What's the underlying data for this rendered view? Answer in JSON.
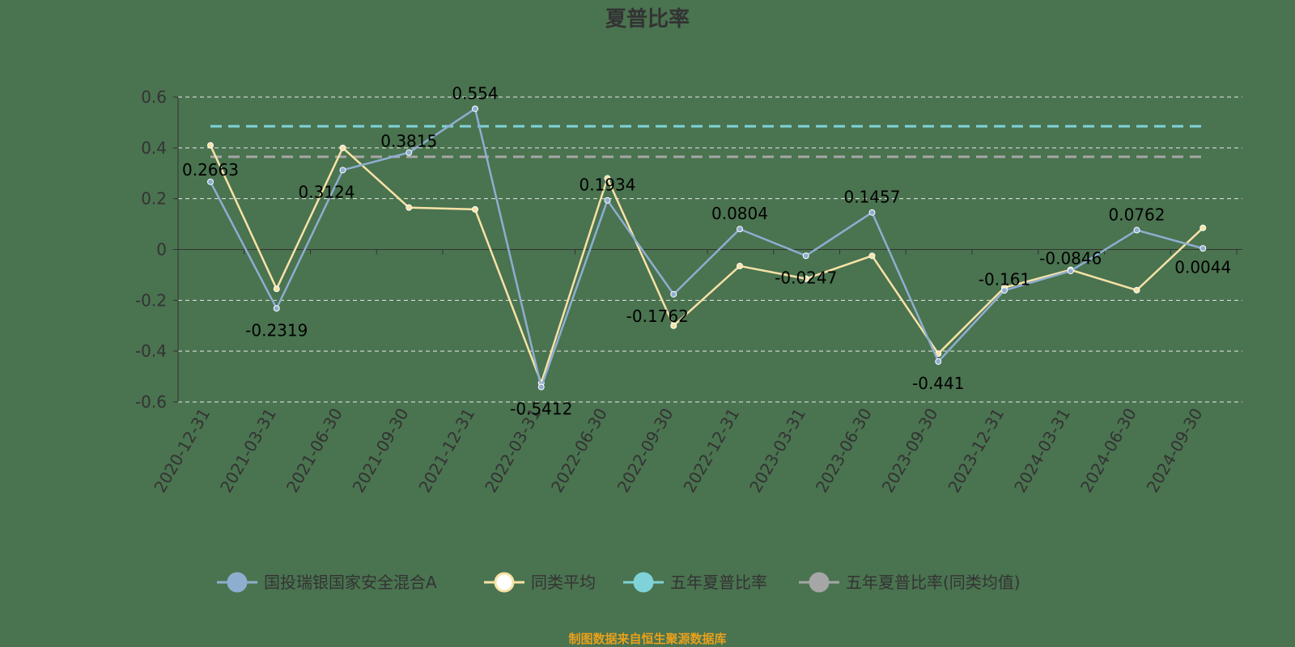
{
  "chart_data": {
    "type": "line",
    "title": "夏普比率",
    "source": "制图数据来自恒生聚源数据库",
    "categories": [
      "2020-12-31",
      "2021-03-31",
      "2021-06-30",
      "2021-09-30",
      "2021-12-31",
      "2022-03-31",
      "2022-06-30",
      "2022-09-30",
      "2022-12-31",
      "2023-03-31",
      "2023-06-30",
      "2023-09-30",
      "2023-12-31",
      "2024-03-31",
      "2024-06-30",
      "2024-09-30"
    ],
    "ylim": [
      -0.6,
      0.6
    ],
    "yticks": [
      0.6,
      0.4,
      0.2,
      0,
      -0.2,
      -0.4,
      -0.6
    ],
    "ytick_labels": [
      "0.6",
      "0.4",
      "0.2",
      "0",
      "-0.2",
      "-0.4",
      "-0.6"
    ],
    "grid": true,
    "legend_position": "bottom",
    "series": [
      {
        "name": "国投瑞银国家安全混合A",
        "color": "#8eaed0",
        "values": [
          0.2663,
          -0.2319,
          0.3124,
          0.3815,
          0.554,
          -0.5412,
          0.1934,
          -0.1762,
          0.0804,
          -0.0247,
          0.1457,
          -0.441,
          -0.161,
          -0.0846,
          0.0762,
          0.0044
        ],
        "labels": [
          "0.2663",
          "-0.2319",
          "0.3124",
          "0.3815",
          "0.554",
          "-0.5412",
          "0.1934",
          "-0.1762",
          "0.0804",
          "-0.0247",
          "0.1457",
          "-0.441",
          "-0.161",
          "-0.0846",
          "0.0762",
          "0.0044"
        ]
      },
      {
        "name": "同类平均",
        "color": "#f7e2a6",
        "values": [
          0.41,
          -0.155,
          0.4,
          0.165,
          0.158,
          -0.525,
          0.28,
          -0.3,
          -0.065,
          -0.115,
          -0.025,
          -0.41,
          -0.15,
          -0.08,
          -0.16,
          0.085
        ]
      },
      {
        "name": "五年夏普比率",
        "color": "#7fd3d8",
        "reference": 0.485
      },
      {
        "name": "五年夏普比率(同类均值)",
        "color": "#a6a6a6",
        "reference": 0.365
      }
    ]
  }
}
